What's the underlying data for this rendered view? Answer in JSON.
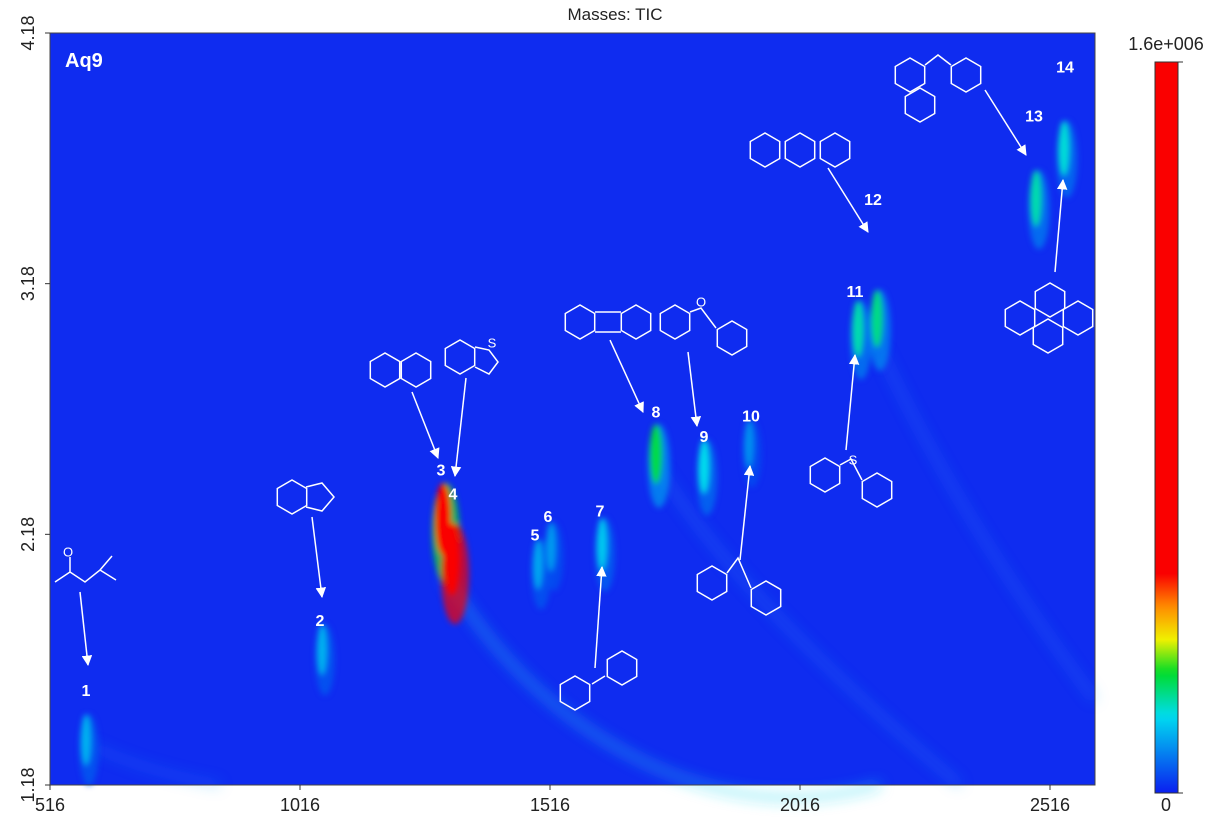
{
  "chart_data": {
    "type": "gcxgc",
    "title": "Masses:  TIC",
    "sample": "Aq9",
    "xlim": [
      516,
      2606
    ],
    "xticks": [
      516,
      1016,
      1516,
      2016,
      2516
    ],
    "ylim": [
      1.18,
      4.18
    ],
    "yticks": [
      1.18,
      2.18,
      3.18,
      4.18
    ],
    "background": "#0f2cf0",
    "peaks": [
      {
        "label": "1",
        "x": 588,
        "y": 1.36,
        "intensity": 130000
      },
      {
        "label": "2",
        "x": 1060,
        "y": 1.72,
        "intensity": 130000
      },
      {
        "label": "3",
        "x": 1302,
        "y": 2.24,
        "intensity": 600000
      },
      {
        "label": "4",
        "x": 1320,
        "y": 2.08,
        "intensity": 1600000
      },
      {
        "label": "5",
        "x": 1492,
        "y": 2.06,
        "intensity": 120000
      },
      {
        "label": "6",
        "x": 1518,
        "y": 2.13,
        "intensity": 110000
      },
      {
        "label": "7",
        "x": 1620,
        "y": 2.14,
        "intensity": 150000
      },
      {
        "label": "8",
        "x": 1728,
        "y": 2.5,
        "intensity": 250000
      },
      {
        "label": "9",
        "x": 1824,
        "y": 2.45,
        "intensity": 170000
      },
      {
        "label": "10",
        "x": 1914,
        "y": 2.54,
        "intensity": 100000
      },
      {
        "label": "11",
        "x": 2132,
        "y": 3.0,
        "intensity": 200000
      },
      {
        "label": "12",
        "x": 2170,
        "y": 3.04,
        "intensity": 220000
      },
      {
        "label": "13",
        "x": 2488,
        "y": 3.52,
        "intensity": 200000
      },
      {
        "label": "14",
        "x": 2544,
        "y": 3.72,
        "intensity": 180000
      }
    ],
    "colorbar": {
      "lim": [
        0,
        1600000
      ],
      "ticks": [
        {
          "value": 1600000,
          "label": "1.6e+006"
        },
        0
      ]
    },
    "structure_atoms": [
      "O",
      "S",
      "O",
      "S"
    ]
  }
}
